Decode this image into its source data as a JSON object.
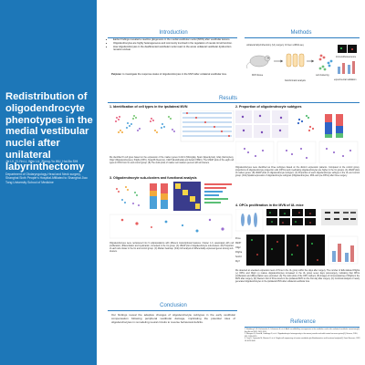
{
  "title": "Redistribution of oligodendrocyte phenotypes in the medial vestibular nuclei after unilateral labyrinthectomy",
  "authors": "Jie LV, Yi-Yin LI, Wen LU, Zheng-Yu WU, Hai-Bo SHI",
  "affiliation": "Department of Otolaryngology-Head and Neck surgery, Shanghai Sixth People's Hospital Affiliated to Shanghai Jiao Tong University School of Medicine",
  "sections": {
    "introduction": "Introduction",
    "methods": "Methods",
    "results": "Results",
    "conclusion": "Conclusion",
    "reference": "Reference"
  },
  "intro_bullets": [
    "Earlier findings revealed a reactive gliogenesis in the medial vestibular nuclei (MVN) after vestibular lesions.",
    "Oligodendrocytes are highly heterogeneous and commonly involved in the regulation of neural circuit function.",
    "How oligodendrocytes in the deafferented vestibular nuclei react to the acute unilateral vestibular dysfunction remains unclear."
  ],
  "purpose_label": "Purpose",
  "purpose_text": ": to investigate the response status of oligodendrocytes in the MVN after unilateral vestibular loss.",
  "methods_labels": {
    "ul_label": "unilateral labyrinthectomy (UL) surgery",
    "scrna": "10 Gen scRNA-seq",
    "mvn": "MVN tissue",
    "cluster": "cell clustering",
    "bioinfo": "bioinformatic analysis",
    "validation": "experimental validation",
    "immuno": "immunofluorescence"
  },
  "results": {
    "r1_head": "1. Identification of cell types in the ipsilateral MVN",
    "r1_text": "We identified 8 cell types based on the expression of the marker genes Cx3cr1 (Microglia), Sparc (Ependymal), Gfap (Astrocytes), Olig2 (Oligodendrocytes), Pdgfra (OPC), Snap25 (Neurons), Cldn5 (Endothelial) and Acta2 (VSMC). The UMAP plots of the eight cell types in MVN from UL and control group. (B) The violin plots of marker cell markers percent with all clusters.",
    "r2_head": "2. Proportion of oligodendrocyte subtypes",
    "r2_text": "Oligodendrocytes were identified as three subtypes based on the distinct expression patterns. Compared to the control group, proportions of oligodendrocyte progenitor cells (OPCs) and myelinating oligodendrocytes are higher in the UL groups. (A) UMAP plots of marker genes. (B) UMAP plots of oligodendrocyte subtypes. (C) Proportion of each oligodendrocyte subtype in the UL and control group. (D-E) Spatial expression of oligodendrocyte subtypes (Oligodendrocytes, MOL and pre-OPCs) after three surgery.",
    "r3_head": "3. Oligodendrocyte sub-clusters and functional analysis",
    "r3_text": "Oligodendrocytes were reclustered into 9 subpopulations with different transcriptional features. Cluster 1-3, associated with cell proliferation, differentiation and myelination, increased in the UL group. (A) UMAP plot of oligodendrocyte sub-clusters. (B) Proportion of each sub-cluster in the UL and control group. (C) Marker heatmap. (D-E) GO analysis of differentially expressed genes among sub-clusters.",
    "r4_head": "4. OPCs proliferation in the MVN of UL mice",
    "r4_text": "We detected an elevated expression level of Pcna in the UL group within five days after surgery. The number of EdU-labeled Pdgfra (+) OPCs and Olig2 (+) mature oligodendrocytes increased in the UL group seven days post-surgery, indicating that OPCs proliferation and differentiation were promoted. (A) The violin plots of the OPC markers. (B) Images of immunostaining of Pdgfra in the MVN after surgery. (D) Western blot of Pcna levels in the ipsilateral MVN on the first day after surgery. (C) Confocal analysis of newly generated oligodendrocytes in the ipsilateral MVN after unilateral vestibular loss."
  },
  "conclusion_text": "Our findings reveal the adaptive changes of oligodendrocyte subtypes in the early vestibular compensation following peripheral vestibular damage, implicating the potential roles of oligodendrocytes in remodeling neural circuits to reverse behavioral deficits.",
  "references": [
    "1. Brattberg G, B. Kuchmenko G, Johansson H, et al. Adult neurofibrillary neurogenesis in the vestibular nuclei after unilateral vestibular neurectomy[J]. Exp Neurol 2011: 2011 2031.",
    "2. Marques S, Zeisel A, Codeluppi S, et al. Oligodendrocyte heterogeneity in the mouse juvenile and adult central nervous system[J]. Science, 2016, 352: 1326-1329.",
    "3. Tsuji D, Yamazaki M, Shimizu K, et al. Single-cell sequencing of murine vestibular glia Bioinformatics and functional analysis[J]. Front Neurosci, 2022, 16:1023-1042."
  ],
  "r4_rows": [
    "Pcna",
    "Mki67",
    "Olig2",
    "Pdgfra",
    "Sox10",
    "Myrf"
  ],
  "colors": {
    "left_bg": "#1d77b8",
    "accent": "#2d7dc0",
    "panel_bg": "#f4f7fb"
  }
}
